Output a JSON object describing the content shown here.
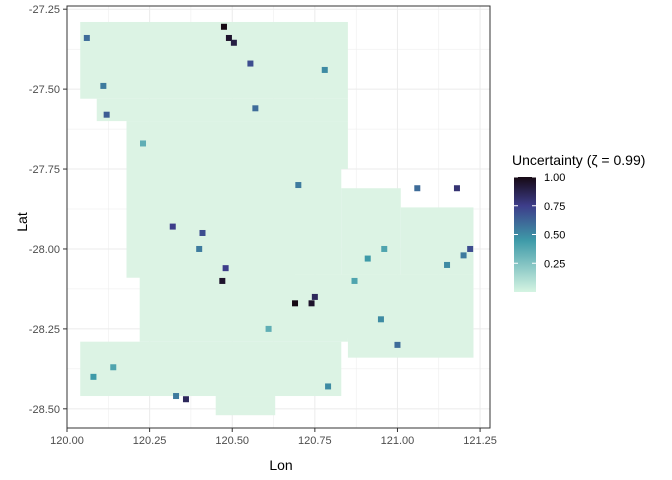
{
  "chart_data": {
    "type": "heatmap",
    "title": "",
    "xlabel": "Lon",
    "ylabel": "Lat",
    "xlim": [
      120.0,
      121.28
    ],
    "ylim": [
      -28.56,
      -27.24
    ],
    "x_ticks": [
      120.0,
      120.25,
      120.5,
      120.75,
      121.0,
      121.25
    ],
    "x_tick_labels": [
      "120.00",
      "120.25",
      "120.50",
      "120.75",
      "121.00",
      "121.25"
    ],
    "y_ticks": [
      -27.25,
      -27.5,
      -27.75,
      -28.0,
      -28.25,
      -28.5
    ],
    "y_tick_labels": [
      "-27.25",
      "-27.50",
      "-27.75",
      "-28.00",
      "-28.25",
      "-28.50"
    ],
    "grid": true,
    "legend": {
      "title": "Uncertainty (ζ = 0.99)",
      "position": "right",
      "ticks": [
        0.25,
        0.5,
        0.75,
        1.0
      ],
      "tick_labels": [
        "0.25",
        "0.50",
        "0.75",
        "1.00"
      ],
      "range": [
        0.0,
        1.0
      ]
    },
    "colors": {
      "low": "#d5f4e2",
      "mid": "#3e9aa8",
      "high_mid": "#3d3d8a",
      "high": "#160914",
      "background_fill": "#dcf3e4",
      "grid": "#ebebeb"
    },
    "coverage_regions": [
      {
        "lon": [
          120.04,
          120.85
        ],
        "lat": [
          -27.53,
          -27.29
        ]
      },
      {
        "lon": [
          120.09,
          120.85
        ],
        "lat": [
          -27.6,
          -27.53
        ]
      },
      {
        "lon": [
          120.18,
          120.85
        ],
        "lat": [
          -27.75,
          -27.6
        ]
      },
      {
        "lon": [
          120.18,
          120.69
        ],
        "lat": [
          -28.09,
          -27.75
        ]
      },
      {
        "lon": [
          120.69,
          120.83
        ],
        "lat": [
          -28.08,
          -27.75
        ]
      },
      {
        "lon": [
          120.83,
          121.01
        ],
        "lat": [
          -28.08,
          -27.81
        ]
      },
      {
        "lon": [
          121.01,
          121.23
        ],
        "lat": [
          -28.08,
          -27.87
        ]
      },
      {
        "lon": [
          120.22,
          121.23
        ],
        "lat": [
          -28.28,
          -28.08
        ]
      },
      {
        "lon": [
          120.22,
          120.85
        ],
        "lat": [
          -28.29,
          -28.28
        ]
      },
      {
        "lon": [
          120.85,
          121.23
        ],
        "lat": [
          -28.34,
          -28.28
        ]
      },
      {
        "lon": [
          120.04,
          120.83
        ],
        "lat": [
          -28.46,
          -28.29
        ]
      },
      {
        "lon": [
          120.45,
          120.63
        ],
        "lat": [
          -28.52,
          -28.46
        ]
      }
    ],
    "hotspots": [
      {
        "lon": 120.475,
        "lat": -27.305,
        "value": 1.0
      },
      {
        "lon": 120.49,
        "lat": -27.34,
        "value": 0.95
      },
      {
        "lon": 120.505,
        "lat": -27.355,
        "value": 0.9
      },
      {
        "lon": 120.555,
        "lat": -27.42,
        "value": 0.7
      },
      {
        "lon": 120.06,
        "lat": -27.34,
        "value": 0.6
      },
      {
        "lon": 120.11,
        "lat": -27.49,
        "value": 0.55
      },
      {
        "lon": 120.12,
        "lat": -27.58,
        "value": 0.65
      },
      {
        "lon": 120.57,
        "lat": -27.56,
        "value": 0.6
      },
      {
        "lon": 120.78,
        "lat": -27.44,
        "value": 0.5
      },
      {
        "lon": 120.7,
        "lat": -27.8,
        "value": 0.55
      },
      {
        "lon": 120.41,
        "lat": -27.95,
        "value": 0.7
      },
      {
        "lon": 120.4,
        "lat": -28.0,
        "value": 0.55
      },
      {
        "lon": 120.32,
        "lat": -27.93,
        "value": 0.75
      },
      {
        "lon": 120.47,
        "lat": -28.1,
        "value": 0.95
      },
      {
        "lon": 120.48,
        "lat": -28.06,
        "value": 0.75
      },
      {
        "lon": 120.69,
        "lat": -28.17,
        "value": 1.0
      },
      {
        "lon": 120.74,
        "lat": -28.17,
        "value": 0.95
      },
      {
        "lon": 120.75,
        "lat": -28.15,
        "value": 0.85
      },
      {
        "lon": 121.06,
        "lat": -27.81,
        "value": 0.6
      },
      {
        "lon": 121.18,
        "lat": -27.81,
        "value": 0.8
      },
      {
        "lon": 121.22,
        "lat": -28.0,
        "value": 0.7
      },
      {
        "lon": 121.2,
        "lat": -28.02,
        "value": 0.55
      },
      {
        "lon": 121.15,
        "lat": -28.05,
        "value": 0.5
      },
      {
        "lon": 121.0,
        "lat": -28.3,
        "value": 0.6
      },
      {
        "lon": 120.95,
        "lat": -28.22,
        "value": 0.5
      },
      {
        "lon": 120.87,
        "lat": -28.1,
        "value": 0.4
      },
      {
        "lon": 120.36,
        "lat": -28.47,
        "value": 0.85
      },
      {
        "lon": 120.33,
        "lat": -28.46,
        "value": 0.55
      },
      {
        "lon": 120.79,
        "lat": -28.43,
        "value": 0.5
      },
      {
        "lon": 120.08,
        "lat": -28.4,
        "value": 0.45
      },
      {
        "lon": 120.14,
        "lat": -28.37,
        "value": 0.4
      },
      {
        "lon": 120.91,
        "lat": -28.03,
        "value": 0.45
      },
      {
        "lon": 120.96,
        "lat": -28.0,
        "value": 0.4
      },
      {
        "lon": 120.23,
        "lat": -27.67,
        "value": 0.35
      },
      {
        "lon": 120.61,
        "lat": -28.25,
        "value": 0.35
      }
    ]
  }
}
